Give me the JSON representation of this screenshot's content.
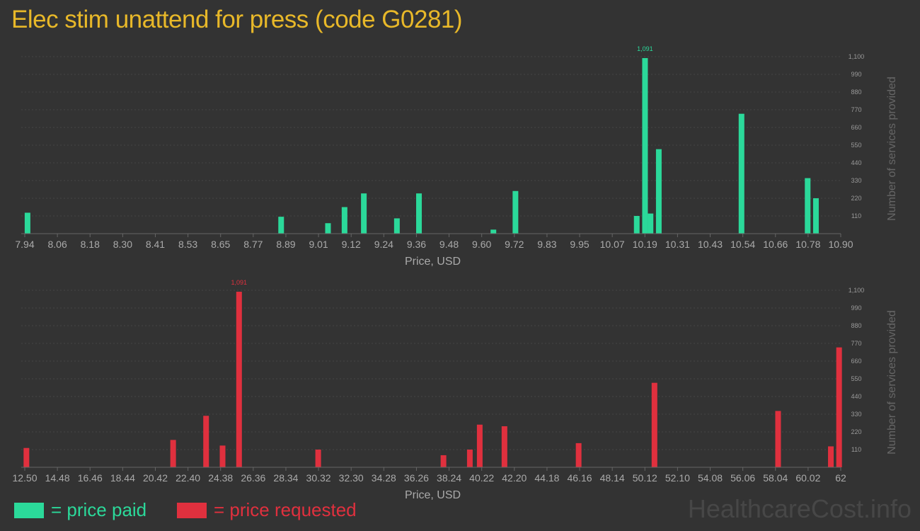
{
  "title": "Elec stim unattend for press (code G0281)",
  "colors": {
    "paid": "#2bd99a",
    "requested": "#e0303e",
    "title": "#e8b829",
    "background": "#333333"
  },
  "legend": {
    "paid": "= price paid",
    "requested": "= price requested"
  },
  "watermark": "HealthcareCost.info",
  "chart_data": [
    {
      "type": "bar",
      "xlabel": "Price, USD",
      "ylabel": "Number of services provided",
      "color": "#2bd99a",
      "xlim": [
        7.94,
        10.9
      ],
      "ylim": [
        0,
        1100
      ],
      "xticks": [
        "7.94",
        "8.06",
        "8.18",
        "8.30",
        "8.41",
        "8.53",
        "8.65",
        "8.77",
        "8.89",
        "9.01",
        "9.12",
        "9.24",
        "9.36",
        "9.48",
        "9.60",
        "9.72",
        "9.83",
        "9.95",
        "10.07",
        "10.19",
        "10.31",
        "10.43",
        "10.54",
        "10.66",
        "10.78",
        "10.90"
      ],
      "yticks": [
        "110",
        "220",
        "330",
        "440",
        "550",
        "660",
        "770",
        "880",
        "990",
        "1,100"
      ],
      "max_label": "1,091",
      "x": [
        7.95,
        8.87,
        9.04,
        9.1,
        9.17,
        9.29,
        9.37,
        9.64,
        9.72,
        10.16,
        10.19,
        10.21,
        10.24,
        10.54,
        10.78,
        10.81
      ],
      "values": [
        130,
        105,
        65,
        165,
        250,
        95,
        250,
        25,
        265,
        110,
        1091,
        125,
        525,
        745,
        345,
        220
      ]
    },
    {
      "type": "bar",
      "xlabel": "Price, USD",
      "ylabel": "Number of services provided",
      "color": "#e0303e",
      "xlim": [
        12.5,
        62
      ],
      "ylim": [
        0,
        1100
      ],
      "xticks": [
        "12.50",
        "14.48",
        "16.46",
        "18.44",
        "20.42",
        "22.40",
        "24.38",
        "26.36",
        "28.34",
        "30.32",
        "32.30",
        "34.28",
        "36.26",
        "38.24",
        "40.22",
        "42.20",
        "44.18",
        "46.16",
        "48.14",
        "50.12",
        "52.10",
        "54.08",
        "56.06",
        "58.04",
        "60.02",
        "62"
      ],
      "yticks": [
        "110",
        "220",
        "330",
        "440",
        "550",
        "660",
        "770",
        "880",
        "990",
        "1,100"
      ],
      "max_label": "1,091",
      "x": [
        12.6,
        21.5,
        23.5,
        24.5,
        25.5,
        30.3,
        37.9,
        39.5,
        40.1,
        41.6,
        46.1,
        50.7,
        58.2,
        61.4,
        61.9
      ],
      "values": [
        120,
        170,
        320,
        135,
        1091,
        110,
        75,
        110,
        265,
        255,
        150,
        525,
        350,
        130,
        745
      ]
    }
  ]
}
